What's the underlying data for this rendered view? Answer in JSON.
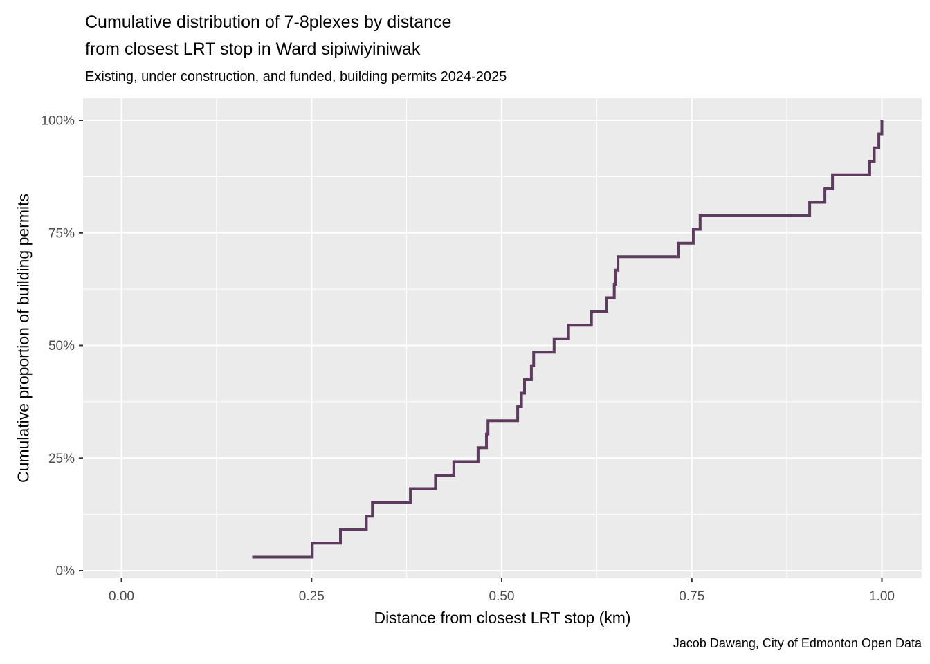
{
  "chart_data": {
    "type": "line",
    "subtype": "ecdf_step",
    "title": "Cumulative distribution of 7-8plexes by distance\nfrom closest LRT stop in Ward sipiwiyiniwak",
    "subtitle": "Existing, under construction, and funded, building permits 2024-2025",
    "caption": "Jacob Dawang, City of Edmonton Open Data",
    "xlabel": "Distance from closest LRT stop (km)",
    "ylabel": "Cumulative proportion of building permits",
    "legend": "none",
    "grid": "major+minor",
    "x_axis": {
      "range": [
        -0.05,
        1.05
      ],
      "ticks": [
        {
          "value": 0.0,
          "label": "0.00"
        },
        {
          "value": 0.25,
          "label": "0.25"
        },
        {
          "value": 0.5,
          "label": "0.50"
        },
        {
          "value": 0.75,
          "label": "0.75"
        },
        {
          "value": 1.0,
          "label": "1.00"
        }
      ],
      "minor": [
        0.125,
        0.375,
        0.625,
        0.875
      ],
      "unit": "km"
    },
    "y_axis": {
      "range": [
        0,
        100
      ],
      "ticks": [
        {
          "value": 0,
          "label": "0%"
        },
        {
          "value": 25,
          "label": "25%"
        },
        {
          "value": 50,
          "label": "50%"
        },
        {
          "value": 75,
          "label": "75%"
        },
        {
          "value": 100,
          "label": "100%"
        }
      ],
      "minor": [
        12.5,
        37.5,
        62.5,
        87.5
      ],
      "unit": "percent"
    },
    "n_permits": 33,
    "step_size_pct": 3.03,
    "distances_km": [
      0.172,
      0.251,
      0.288,
      0.322,
      0.33,
      0.38,
      0.413,
      0.437,
      0.469,
      0.48,
      0.482,
      0.521,
      0.526,
      0.53,
      0.539,
      0.542,
      0.569,
      0.588,
      0.618,
      0.638,
      0.648,
      0.65,
      0.653,
      0.732,
      0.752,
      0.761,
      0.905,
      0.925,
      0.935,
      0.984,
      0.99,
      0.996,
      1.0
    ],
    "cumulative_pct": [
      3.0,
      6.1,
      9.1,
      12.1,
      15.2,
      18.2,
      21.2,
      24.2,
      27.3,
      30.3,
      33.3,
      36.4,
      39.4,
      42.4,
      45.5,
      48.5,
      51.5,
      54.5,
      57.6,
      60.6,
      63.6,
      66.7,
      69.7,
      72.7,
      75.8,
      78.8,
      81.8,
      84.8,
      87.9,
      90.9,
      93.9,
      97.0,
      100.0
    ],
    "style": {
      "line_color": "#5D3B5E",
      "line_width": 4,
      "panel_bg": "#EBEBEB",
      "grid_color": "#FFFFFF",
      "tick_color": "#333333",
      "axis_text_color": "#4D4D4D",
      "text_color": "#000000",
      "background": "#FFFFFF"
    }
  }
}
